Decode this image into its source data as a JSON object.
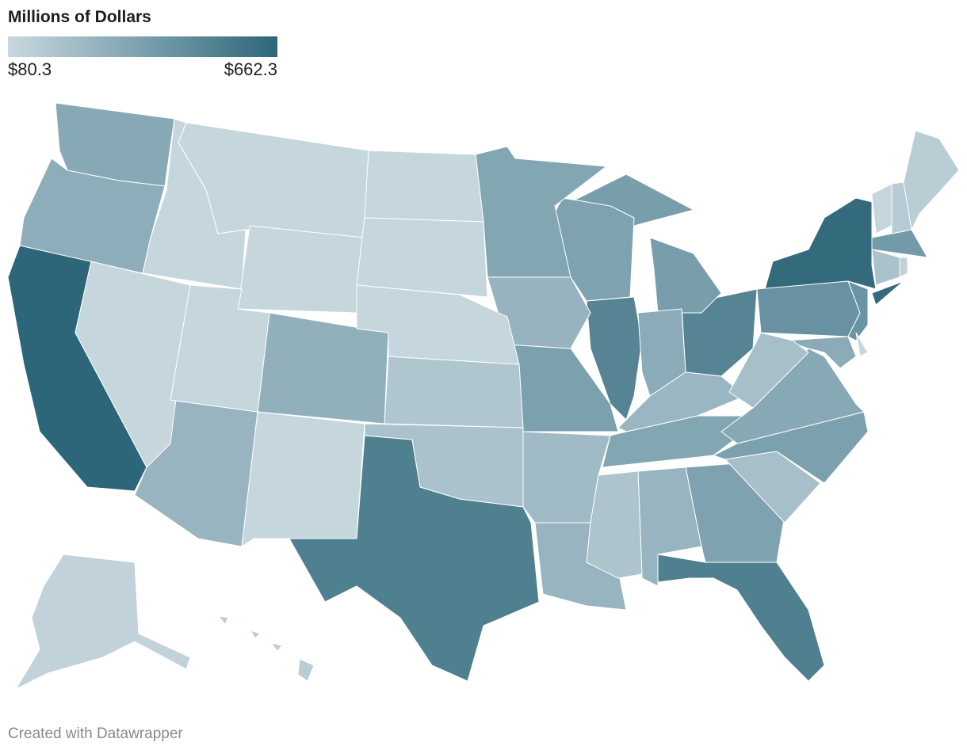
{
  "title": "Millions of Dollars",
  "legend": {
    "min_label": "$80.3",
    "max_label": "$662.3",
    "min_value": 80.3,
    "max_value": 662.3,
    "colors": {
      "low": "#c9d8df",
      "mid": "#7ba0ae",
      "high": "#2d6679"
    }
  },
  "footer": "Created with Datawrapper",
  "states": [
    {
      "id": "CA",
      "level": 1.0
    },
    {
      "id": "NY",
      "level": 0.96
    },
    {
      "id": "TX",
      "level": 0.78
    },
    {
      "id": "FL",
      "level": 0.78
    },
    {
      "id": "IL",
      "level": 0.74
    },
    {
      "id": "OH",
      "level": 0.74
    },
    {
      "id": "PA",
      "level": 0.62
    },
    {
      "id": "NJ",
      "level": 0.6
    },
    {
      "id": "MA",
      "level": 0.55
    },
    {
      "id": "MI",
      "level": 0.52
    },
    {
      "id": "WI",
      "level": 0.48
    },
    {
      "id": "MN",
      "level": 0.45
    },
    {
      "id": "MO",
      "level": 0.5
    },
    {
      "id": "NC",
      "level": 0.5
    },
    {
      "id": "GA",
      "level": 0.48
    },
    {
      "id": "TN",
      "level": 0.45
    },
    {
      "id": "WA",
      "level": 0.42
    },
    {
      "id": "OR",
      "level": 0.38
    },
    {
      "id": "CO",
      "level": 0.36
    },
    {
      "id": "AZ",
      "level": 0.32
    },
    {
      "id": "IA",
      "level": 0.33
    },
    {
      "id": "IN",
      "level": 0.4
    },
    {
      "id": "VA",
      "level": 0.42
    },
    {
      "id": "MD",
      "level": 0.4
    },
    {
      "id": "AL",
      "level": 0.32
    },
    {
      "id": "LA",
      "level": 0.32
    },
    {
      "id": "KY",
      "level": 0.3
    },
    {
      "id": "AR",
      "level": 0.26
    },
    {
      "id": "OK",
      "level": 0.2
    },
    {
      "id": "KS",
      "level": 0.16
    },
    {
      "id": "SC",
      "level": 0.22
    },
    {
      "id": "MS",
      "level": 0.18
    },
    {
      "id": "WV",
      "level": 0.22
    },
    {
      "id": "CT",
      "level": 0.2
    },
    {
      "id": "NH",
      "level": 0.12
    },
    {
      "id": "ME",
      "level": 0.1
    },
    {
      "id": "VT",
      "level": 0.02
    },
    {
      "id": "RI",
      "level": 0.05
    },
    {
      "id": "DE",
      "level": 0.0
    },
    {
      "id": "MT",
      "level": 0.02
    },
    {
      "id": "ID",
      "level": 0.02
    },
    {
      "id": "WY",
      "level": 0.02
    },
    {
      "id": "ND",
      "level": 0.02
    },
    {
      "id": "SD",
      "level": 0.02
    },
    {
      "id": "NE",
      "level": 0.02
    },
    {
      "id": "NV",
      "level": 0.02
    },
    {
      "id": "UT",
      "level": 0.02
    },
    {
      "id": "NM",
      "level": 0.02
    },
    {
      "id": "AK",
      "level": 0.05
    },
    {
      "id": "HI",
      "level": 0.1
    }
  ]
}
